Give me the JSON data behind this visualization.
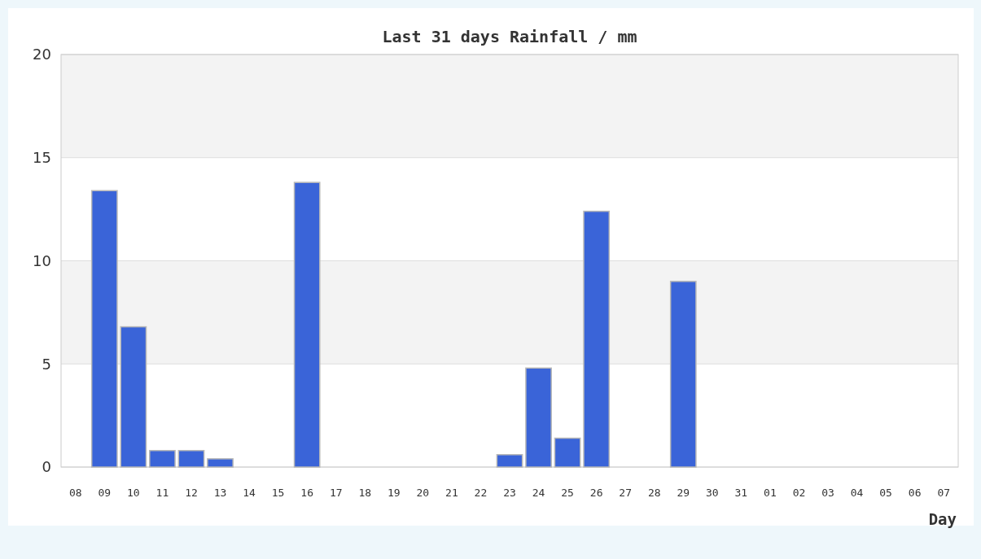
{
  "chart_data": {
    "type": "bar",
    "title": "Last 31 days Rainfall / mm",
    "xlabel": "Day",
    "categories": [
      "08",
      "09",
      "10",
      "11",
      "12",
      "13",
      "14",
      "15",
      "16",
      "17",
      "18",
      "19",
      "20",
      "21",
      "22",
      "23",
      "24",
      "25",
      "26",
      "27",
      "28",
      "29",
      "30",
      "31",
      "01",
      "02",
      "03",
      "04",
      "05",
      "06",
      "07"
    ],
    "values": [
      0,
      13.4,
      6.8,
      0.8,
      0.8,
      0.4,
      0,
      0,
      13.8,
      0,
      0,
      0,
      0,
      0,
      0,
      0.6,
      4.8,
      1.4,
      12.4,
      0,
      0,
      9.0,
      0,
      0,
      0,
      0,
      0,
      0,
      0,
      0,
      0
    ],
    "color": "#3a64d8",
    "ylim": [
      0,
      20
    ],
    "yticks": [
      0,
      5,
      10,
      15,
      20
    ],
    "grid": "y"
  }
}
